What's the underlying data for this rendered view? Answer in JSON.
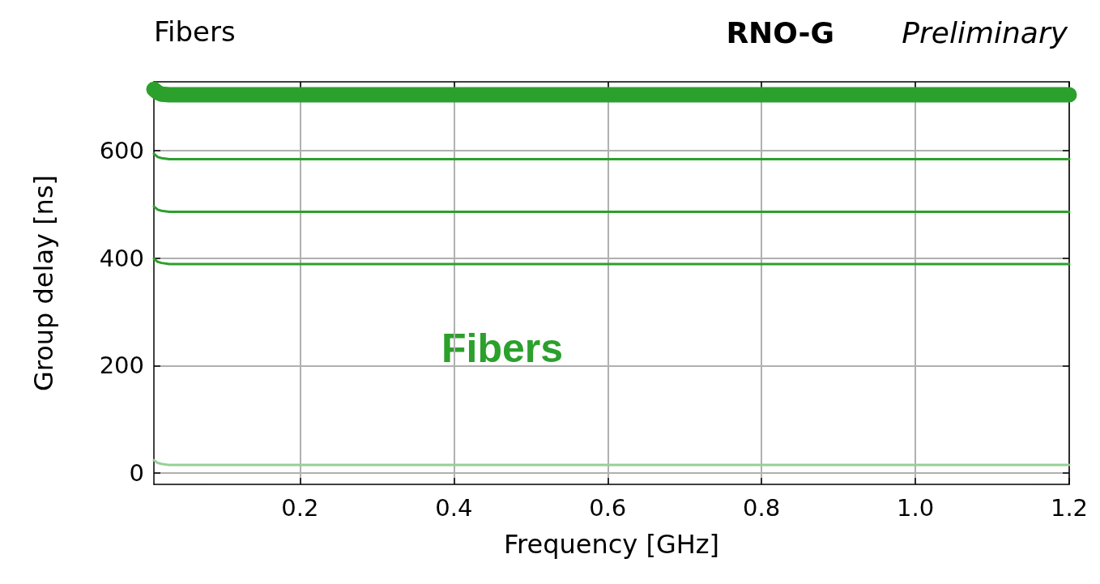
{
  "chart_data": {
    "type": "line",
    "title": "Fibers",
    "xlabel": "Frequency [GHz]",
    "ylabel": "Group delay [ns]",
    "annotations": [
      "RNO-G",
      "Preliminary",
      "Fibers"
    ],
    "x": [
      0.01,
      0.015,
      0.02,
      0.03,
      0.05,
      0.1,
      1.2
    ],
    "series": [
      {
        "color": "#2ca02c",
        "values": [
          714,
          708,
          705,
          704,
          704,
          704,
          704
        ]
      },
      {
        "color": "#2ca02c",
        "values": [
          594,
          588,
          586,
          584,
          584,
          584,
          584
        ]
      },
      {
        "color": "#2ca02c",
        "values": [
          496,
          490,
          488,
          486,
          486,
          486,
          486
        ]
      },
      {
        "color": "#2ca02c",
        "values": [
          399,
          393,
          391,
          389,
          389,
          389,
          389
        ]
      },
      {
        "color": "#96d096",
        "values": [
          24,
          19,
          17,
          15,
          15,
          15,
          15
        ]
      }
    ],
    "xlim": [
      0.01,
      1.2
    ],
    "ylim": [
      -21,
      728
    ],
    "xticks": [
      0.2,
      0.4,
      0.6,
      0.8,
      {
        "value": 1,
        "label": "1.0"
      },
      1.2
    ],
    "yticks": [
      0,
      200,
      400,
      600
    ],
    "grid": true,
    "marker": "none",
    "line_style": "solid"
  }
}
